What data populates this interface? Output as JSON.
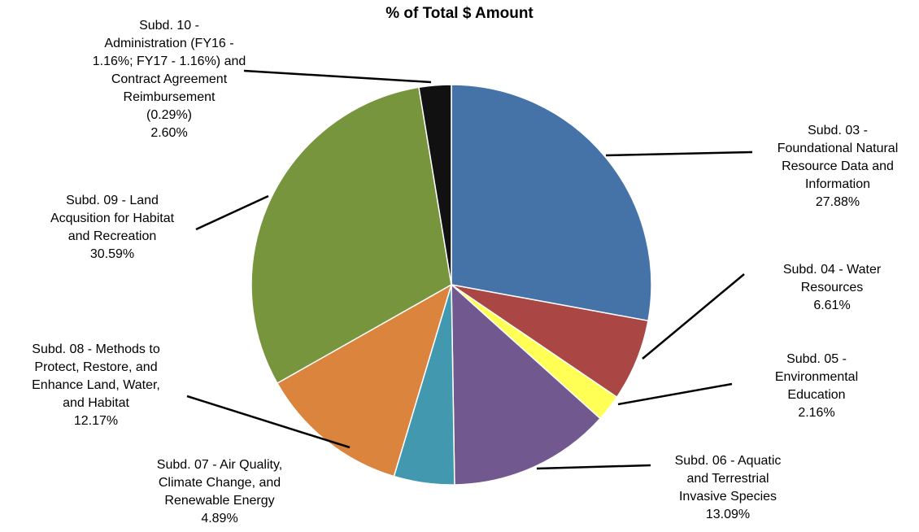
{
  "chart_data": {
    "type": "pie",
    "title": "% of Total $ Amount",
    "slices": [
      {
        "category": "Subd. 03 - Foundational Natural Resource Data and Information",
        "value": 27.88,
        "value_label": "27.88%",
        "color": "#4572A7",
        "label_lines": [
          "Subd. 03 -",
          "Foundational Natural",
          "Resource Data and",
          "Information"
        ]
      },
      {
        "category": "Subd. 04 - Water Resources",
        "value": 6.61,
        "value_label": "6.61%",
        "color": "#AA4643",
        "label_lines": [
          "Subd. 04 - Water",
          "Resources"
        ]
      },
      {
        "category": "Subd. 05 - Environmental Education",
        "value": 2.16,
        "value_label": "2.16%",
        "color": "#FFFF55",
        "label_lines": [
          "Subd. 05 -",
          "Environmental",
          "Education"
        ]
      },
      {
        "category": "Subd. 06 - Aquatic and Terrestrial Invasive Species",
        "value": 13.09,
        "value_label": "13.09%",
        "color": "#71588F",
        "label_lines": [
          "Subd. 06 - Aquatic",
          "and Terrestrial",
          "Invasive Species"
        ]
      },
      {
        "category": "Subd. 07 - Air Quality, Climate Change, and Renewable Energy",
        "value": 4.89,
        "value_label": "4.89%",
        "color": "#4198AF",
        "label_lines": [
          "Subd. 07 - Air Quality,",
          "Climate Change, and",
          "Renewable Energy"
        ]
      },
      {
        "category": "Subd. 08 - Methods to Protect, Restore, and Enhance Land, Water, and Habitat",
        "value": 12.17,
        "value_label": "12.17%",
        "color": "#DB843D",
        "label_lines": [
          "Subd. 08 - Methods to",
          "Protect, Restore, and",
          "Enhance Land, Water,",
          "and Habitat"
        ]
      },
      {
        "category": "Subd. 09 - Land Acqusition for Habitat and Recreation",
        "value": 30.59,
        "value_label": "30.59%",
        "color": "#77953D",
        "label_lines": [
          "Subd. 09 - Land",
          "Acqusition for Habitat",
          "and Recreation"
        ]
      },
      {
        "category": "Subd. 10 - Administration (FY16 - 1.16%; FY17 - 1.16%) and Contract Agreement Reimbursement (0.29%)",
        "value": 2.6,
        "value_label": "2.60%",
        "color": "#111111",
        "label_lines": [
          "Subd. 10 -",
          "Administration (FY16 -",
          "1.16%; FY17 - 1.16%) and",
          "Contract Agreement",
          "Reimbursement",
          "(0.29%)"
        ]
      }
    ]
  }
}
